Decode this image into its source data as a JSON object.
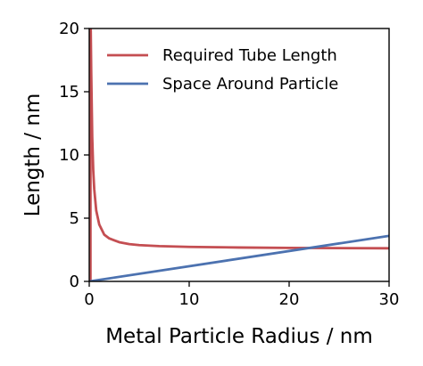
{
  "chart_data": {
    "type": "line",
    "title": "",
    "xlabel": "Metal Particle Radius / nm",
    "ylabel": "Length / nm",
    "xlim": [
      0,
      30
    ],
    "ylim": [
      0,
      20
    ],
    "xticks": [
      0,
      10,
      20,
      30
    ],
    "yticks": [
      0,
      5,
      10,
      15,
      20
    ],
    "grid": false,
    "legend_position": "top-right",
    "series": [
      {
        "name": "Required Tube Length",
        "color": "#c44e52",
        "x": [
          0.15,
          0.2,
          0.3,
          0.4,
          0.5,
          0.7,
          1.0,
          1.5,
          2,
          3,
          4,
          5,
          7,
          10,
          15,
          20,
          25,
          30
        ],
        "y": [
          20,
          16.5,
          11.4,
          8.8,
          7.3,
          5.6,
          4.5,
          3.7,
          3.4,
          3.1,
          2.95,
          2.87,
          2.79,
          2.73,
          2.68,
          2.65,
          2.63,
          2.62
        ]
      },
      {
        "name": "Space Around Particle",
        "color": "#4c72b0",
        "x": [
          0,
          30
        ],
        "y": [
          0,
          3.6
        ]
      }
    ],
    "artifact_vline": {
      "x": 0.15,
      "color": "#c44e52"
    }
  }
}
